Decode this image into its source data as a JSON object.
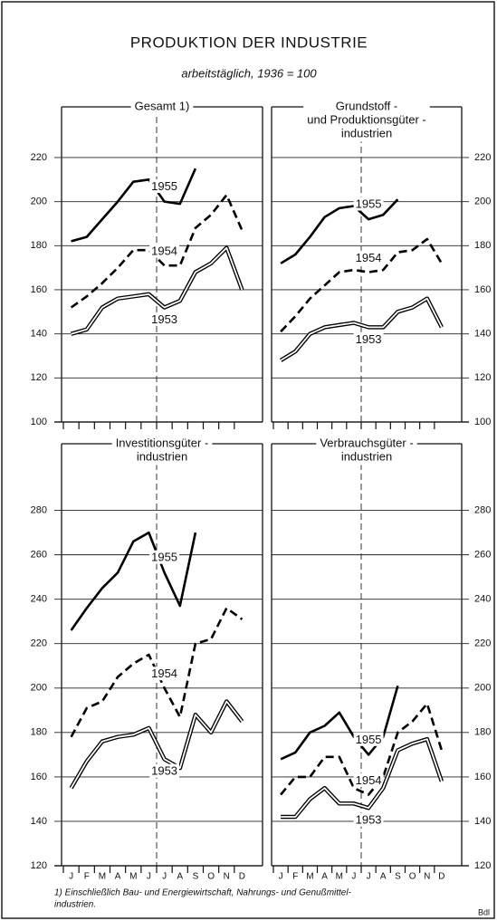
{
  "header": {
    "title": "PRODUKTION DER INDUSTRIE",
    "subtitle": "arbeitstäglich, 1936 = 100"
  },
  "chart_data": [
    {
      "type": "line",
      "title": [
        "Gesamt 1)"
      ],
      "categories": [
        null,
        null,
        null,
        null,
        null,
        null,
        null,
        null,
        null,
        null,
        null,
        null
      ],
      "ylim": [
        100,
        243
      ],
      "yticks": [
        100,
        120,
        140,
        160,
        180,
        200,
        220
      ],
      "grid": true,
      "series": [
        {
          "name": "1955",
          "color": "#000000",
          "style": "solid",
          "values": [
            182,
            184,
            192,
            200,
            209,
            210,
            200,
            199,
            215,
            null,
            null,
            null
          ]
        },
        {
          "name": "1954",
          "color": "#000000",
          "style": "dashed",
          "values": [
            152,
            157,
            163,
            170,
            178,
            178,
            171,
            171,
            188,
            194,
            203,
            187
          ]
        },
        {
          "name": "1953",
          "color": "#000000",
          "style": "double",
          "values": [
            140,
            142,
            152,
            156,
            157,
            158,
            152,
            155,
            168,
            172,
            179,
            160
          ]
        }
      ]
    },
    {
      "type": "line",
      "title": [
        "Grundstoff -",
        "und Produktionsgüter -",
        "industrien"
      ],
      "categories": [
        null,
        null,
        null,
        null,
        null,
        null,
        null,
        null,
        null,
        null,
        null,
        null
      ],
      "ylim": [
        100,
        243
      ],
      "yticks": [
        100,
        120,
        140,
        160,
        180,
        200,
        220
      ],
      "grid": true,
      "series": [
        {
          "name": "1955",
          "color": "#000000",
          "style": "solid",
          "values": [
            172,
            176,
            184,
            193,
            197,
            198,
            192,
            194,
            201,
            null,
            null,
            null
          ]
        },
        {
          "name": "1954",
          "color": "#000000",
          "style": "dashed",
          "values": [
            141,
            148,
            156,
            162,
            168,
            169,
            168,
            169,
            177,
            178,
            183,
            172
          ]
        },
        {
          "name": "1953",
          "color": "#000000",
          "style": "double",
          "values": [
            128,
            132,
            140,
            143,
            144,
            145,
            143,
            143,
            150,
            152,
            156,
            143
          ]
        }
      ]
    },
    {
      "type": "line",
      "title": [
        "Investitionsgüter -",
        "industrien"
      ],
      "categories": [
        "J",
        "F",
        "M",
        "A",
        "M",
        "J",
        "J",
        "A",
        "S",
        "O",
        "N",
        "D"
      ],
      "ylim": [
        120,
        310
      ],
      "yticks": [
        120,
        140,
        160,
        180,
        200,
        220,
        240,
        260,
        280
      ],
      "grid": true,
      "series": [
        {
          "name": "1955",
          "color": "#000000",
          "style": "solid",
          "values": [
            226,
            236,
            245,
            252,
            266,
            270,
            252,
            237,
            270,
            null,
            null,
            null
          ]
        },
        {
          "name": "1954",
          "color": "#000000",
          "style": "dashed",
          "values": [
            178,
            191,
            194,
            205,
            211,
            215,
            200,
            187,
            220,
            222,
            236,
            231
          ]
        },
        {
          "name": "1953",
          "color": "#000000",
          "style": "double",
          "values": [
            155,
            167,
            176,
            178,
            179,
            182,
            168,
            164,
            188,
            180,
            194,
            185
          ]
        }
      ]
    },
    {
      "type": "line",
      "title": [
        "Verbrauchsgüter -",
        "industrien"
      ],
      "categories": [
        "J",
        "F",
        "M",
        "A",
        "M",
        "J",
        "J",
        "A",
        "S",
        "O",
        "N",
        "D"
      ],
      "ylim": [
        120,
        310
      ],
      "yticks": [
        120,
        140,
        160,
        180,
        200,
        220,
        240,
        260,
        280
      ],
      "grid": true,
      "series": [
        {
          "name": "1955",
          "color": "#000000",
          "style": "solid",
          "values": [
            168,
            171,
            180,
            183,
            189,
            178,
            170,
            178,
            201,
            null,
            null,
            null
          ]
        },
        {
          "name": "1954",
          "color": "#000000",
          "style": "dashed",
          "values": [
            152,
            160,
            160,
            169,
            169,
            155,
            152,
            160,
            180,
            185,
            193,
            172
          ]
        },
        {
          "name": "1953",
          "color": "#000000",
          "style": "double",
          "values": [
            142,
            142,
            150,
            155,
            148,
            148,
            146,
            155,
            172,
            175,
            177,
            158
          ]
        }
      ]
    }
  ],
  "footnote": [
    "1) Einschließlich Bau- und Energiewirtschaft, Nahrungs- und Genußmittel-",
    "industrien."
  ],
  "source": "Bdl"
}
